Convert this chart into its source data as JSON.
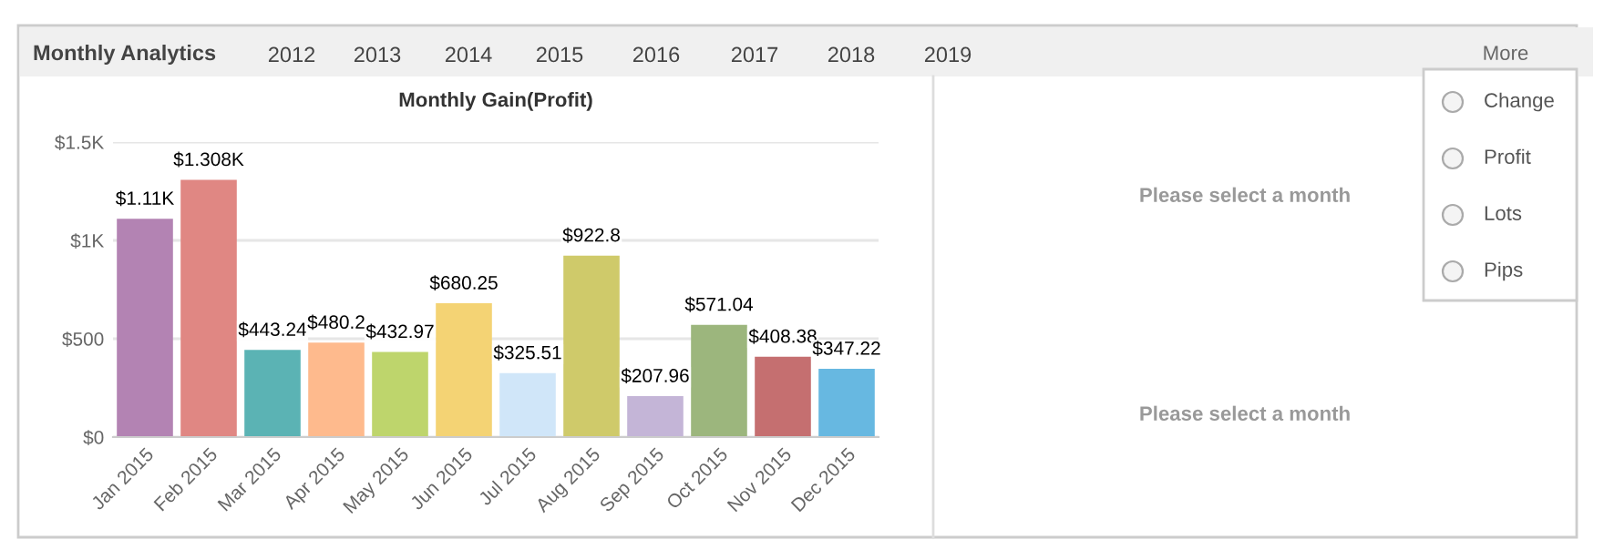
{
  "chart_data": {
    "type": "bar",
    "title": "Monthly Gain(Profit)",
    "categories": [
      "Jan 2015",
      "Feb 2015",
      "Mar 2015",
      "Apr 2015",
      "May 2015",
      "Jun 2015",
      "Jul 2015",
      "Aug 2015",
      "Sep 2015",
      "Oct 2015",
      "Nov 2015",
      "Dec 2015"
    ],
    "values": [
      1110,
      1308,
      443.24,
      480.2,
      432.97,
      680.25,
      325.51,
      922.8,
      207.96,
      571.04,
      408.38,
      347.22
    ],
    "value_labels": [
      "$1.11K",
      "$1.308K",
      "$443.24",
      "$480.2",
      "$432.97",
      "$680.25",
      "$325.51",
      "$922.8",
      "$207.96",
      "$571.04",
      "$408.38",
      "$347.22"
    ],
    "colors": [
      "#b383b3",
      "#e08783",
      "#5bb3b4",
      "#feba8d",
      "#bed56c",
      "#f4d374",
      "#d0e6f9",
      "#cfca6a",
      "#c4b5d7",
      "#9cb67d",
      "#c56f70",
      "#67b8e1"
    ],
    "ylim": [
      0,
      1500
    ],
    "yticks": [
      {
        "value": 0,
        "label": "$0"
      },
      {
        "value": 500,
        "label": "$500"
      },
      {
        "value": 1000,
        "label": "$1K"
      },
      {
        "value": 1500,
        "label": "$1.5K"
      }
    ],
    "grid": "y",
    "annotations": [
      "Monthly Analytics",
      "2012",
      "2013",
      "2014",
      "2015",
      "2016",
      "2017",
      "2018",
      "2019",
      "More",
      "Change",
      "Profit",
      "Lots",
      "Pips",
      "Please select a month",
      "Please select a month"
    ]
  }
}
